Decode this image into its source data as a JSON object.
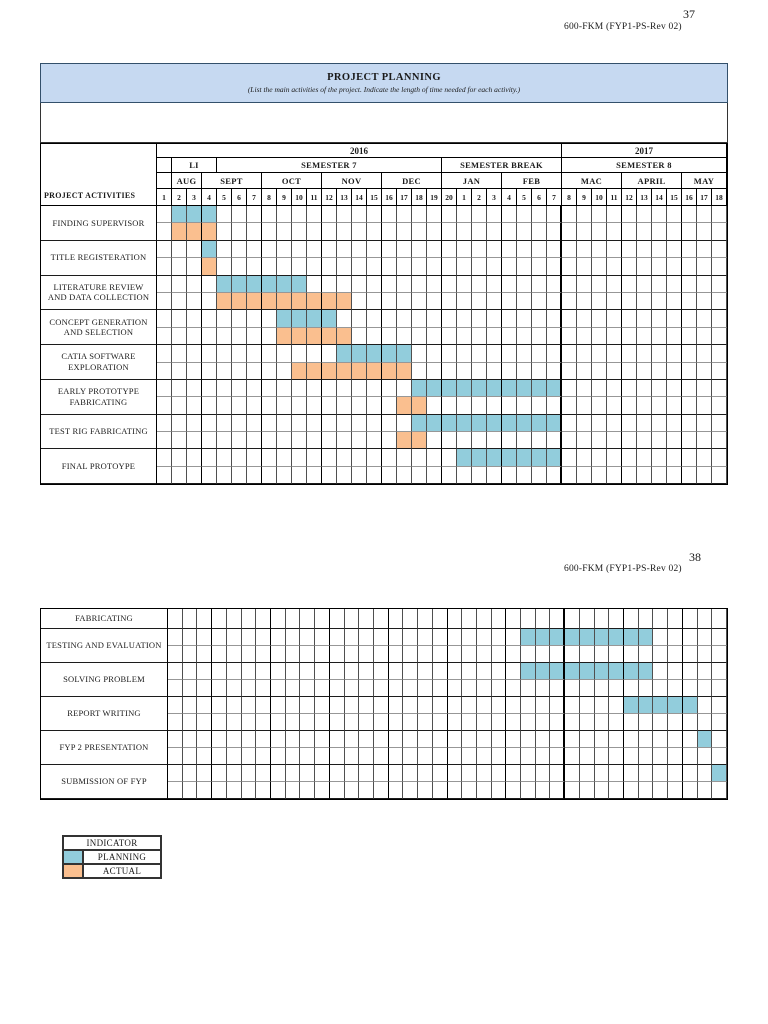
{
  "page1": {
    "page_number": "37",
    "doc_code": "600-FKM (FYP1-PS-Rev 02)",
    "title": "PROJECT PLANNING",
    "subtitle": "(List the main activities of the project. Indicate the length of time needed for each activity.)",
    "activities_header": "PROJECT ACTIVITIES"
  },
  "page2": {
    "page_number": "38",
    "doc_code": "600-FKM (FYP1-PS-Rev 02)"
  },
  "legend": {
    "title": "INDICATOR",
    "items": [
      {
        "label": "PLANNING",
        "color": "#92cddc"
      },
      {
        "label": "ACTUAL",
        "color": "#fabf8f"
      }
    ]
  },
  "colors": {
    "planning": "#92cddc",
    "actual": "#fabf8f",
    "header_bg": "#c6d9f1"
  },
  "chart_data": {
    "type": "gantt",
    "title": "PROJECT PLANNING",
    "column_unit": "academic week (38 columns, AUG 2016 - MAY 2017)",
    "years": [
      {
        "label": "2016",
        "start": 1,
        "end": 27
      },
      {
        "label": "2017",
        "start": 28,
        "end": 38
      }
    ],
    "semesters": [
      {
        "label": "",
        "start": 1,
        "end": 1
      },
      {
        "label": "LI",
        "start": 2,
        "end": 4
      },
      {
        "label": "SEMESTER 7",
        "start": 5,
        "end": 19
      },
      {
        "label": "SEMESTER BREAK",
        "start": 20,
        "end": 27
      },
      {
        "label": "SEMESTER 8",
        "start": 28,
        "end": 38
      }
    ],
    "months": [
      {
        "label": "",
        "start": 1,
        "end": 1
      },
      {
        "label": "AUG",
        "start": 2,
        "end": 3
      },
      {
        "label": "SEPT",
        "start": 4,
        "end": 7
      },
      {
        "label": "OCT",
        "start": 8,
        "end": 11
      },
      {
        "label": "NOV",
        "start": 12,
        "end": 15
      },
      {
        "label": "DEC",
        "start": 16,
        "end": 19
      },
      {
        "label": "JAN",
        "start": 20,
        "end": 23
      },
      {
        "label": "FEB",
        "start": 24,
        "end": 27
      },
      {
        "label": "MAC",
        "start": 28,
        "end": 31
      },
      {
        "label": "APRIL",
        "start": 32,
        "end": 35
      },
      {
        "label": "MAY",
        "start": 36,
        "end": 38
      }
    ],
    "week_numbers": [
      1,
      2,
      3,
      4,
      5,
      6,
      7,
      8,
      9,
      10,
      11,
      12,
      13,
      14,
      15,
      16,
      17,
      18,
      19,
      20,
      1,
      2,
      3,
      4,
      5,
      6,
      7,
      8,
      9,
      10,
      11,
      12,
      13,
      14,
      15,
      16,
      17,
      18
    ],
    "page1_rows": [
      {
        "activity": "FINDING SUPERVISOR",
        "planning": [
          2,
          4
        ],
        "actual": [
          2,
          4
        ]
      },
      {
        "activity": "TITLE REGISTERATION",
        "planning": [
          4,
          4
        ],
        "actual": [
          4,
          4
        ]
      },
      {
        "activity": "LITERATURE REVIEW AND DATA COLLECTION",
        "planning": [
          5,
          10
        ],
        "actual": [
          5,
          13
        ]
      },
      {
        "activity": "CONCEPT GENERATION AND SELECTION",
        "planning": [
          9,
          12
        ],
        "actual": [
          9,
          13
        ]
      },
      {
        "activity": "CATIA SOFTWARE EXPLORATION",
        "planning": [
          13,
          17
        ],
        "actual": [
          10,
          17
        ]
      },
      {
        "activity": "EARLY PROTOTYPE FABRICATING",
        "planning": [
          18,
          27
        ],
        "actual": [
          17,
          18
        ]
      },
      {
        "activity": "TEST RIG FABRICATING",
        "planning": [
          18,
          27
        ],
        "actual": [
          17,
          18
        ]
      },
      {
        "activity": "FINAL PROTOYPE",
        "planning": [
          21,
          27
        ],
        "actual": null
      }
    ],
    "page2_rows": [
      {
        "activity": "FABRICATING",
        "planning": null,
        "actual": null,
        "thin": true
      },
      {
        "activity": "TESTING AND EVALUATION",
        "planning": [
          25,
          33
        ],
        "actual": null
      },
      {
        "activity": "SOLVING PROBLEM",
        "planning": [
          25,
          33
        ],
        "actual": null
      },
      {
        "activity": "REPORT WRITING",
        "planning": [
          32,
          36
        ],
        "actual": null
      },
      {
        "activity": "FYP 2 PRESENTATION",
        "planning": [
          37,
          37
        ],
        "actual": null
      },
      {
        "activity": "SUBMISSION OF FYP",
        "planning": [
          38,
          38
        ],
        "actual": null
      }
    ]
  }
}
